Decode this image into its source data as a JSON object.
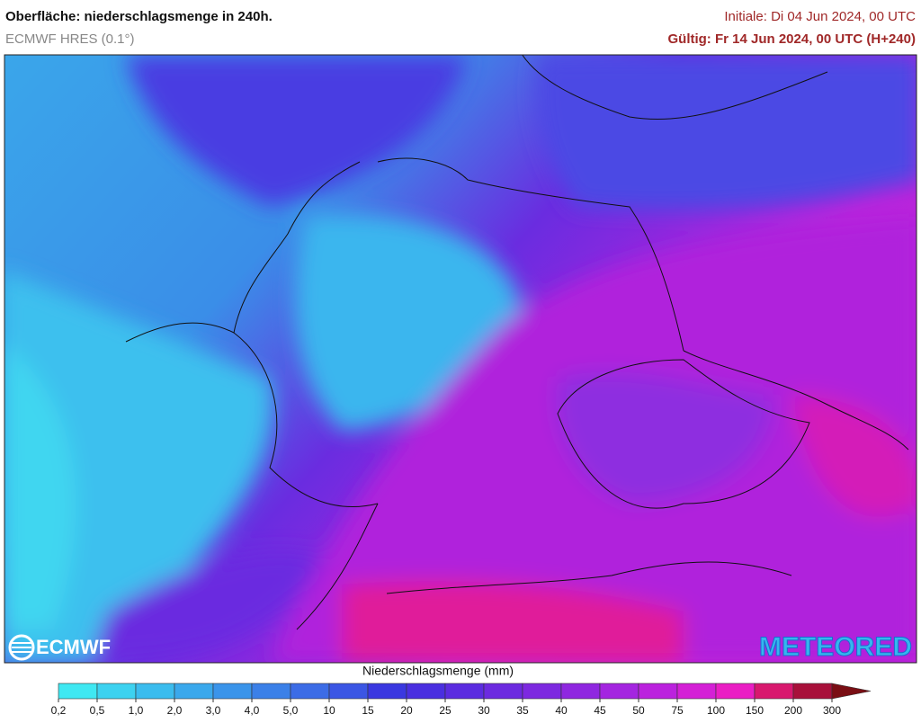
{
  "header": {
    "title": "Oberfläche: niederschlagsmenge in 240h.",
    "model": "ECMWF HRES (0.1°)",
    "initial": "Initiale: Di 04 Jun 2024, 00 UTC",
    "valid": "Gültig: Fr 14 Jun 2024, 00 UTC (H+240)"
  },
  "logos": {
    "left": "ECMWF",
    "right": "METEORED"
  },
  "legend": {
    "title": "Niederschlagsmenge (mm)",
    "labels": [
      "0,2",
      "0,5",
      "1,0",
      "2,0",
      "3,0",
      "4,0",
      "5,0",
      "10",
      "15",
      "20",
      "25",
      "30",
      "35",
      "40",
      "45",
      "50",
      "75",
      "100",
      "150",
      "200",
      "300"
    ],
    "colors": [
      "#3fe8f2",
      "#3dd2f0",
      "#3bbcee",
      "#3aa8ec",
      "#3a94ea",
      "#3b80e8",
      "#3c6ce6",
      "#3b56e4",
      "#3a38e0",
      "#4a2fe0",
      "#5b2ce0",
      "#6c2ae0",
      "#7d29e0",
      "#8f27e0",
      "#a425e0",
      "#bb22de",
      "#d420d6",
      "#ea1ec4",
      "#d8186e",
      "#a8103a",
      "#7a0e14"
    ]
  }
}
